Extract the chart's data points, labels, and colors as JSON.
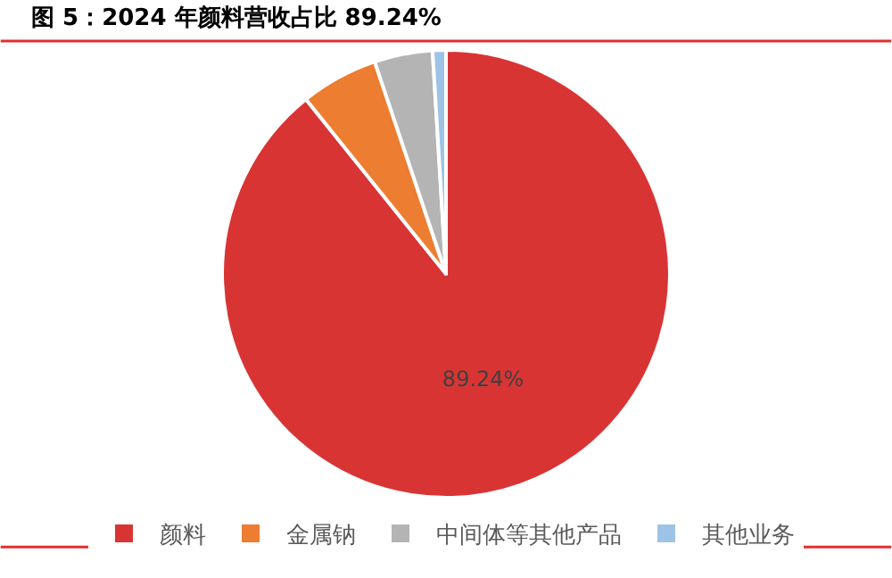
{
  "chart_data": {
    "type": "pie",
    "title": "图 5：2024 年颜料营收占比 89.24%",
    "categories": [
      "颜料",
      "金属钠",
      "中间体等其他产品",
      "其他业务"
    ],
    "values": [
      89.24,
      5.6,
      4.2,
      0.96
    ],
    "colors": [
      "#d93434",
      "#ed7d31",
      "#b4b4b4",
      "#9dc3e6"
    ],
    "value_labels": [
      "89.24%",
      null,
      null,
      null
    ],
    "legend": "bottom"
  }
}
